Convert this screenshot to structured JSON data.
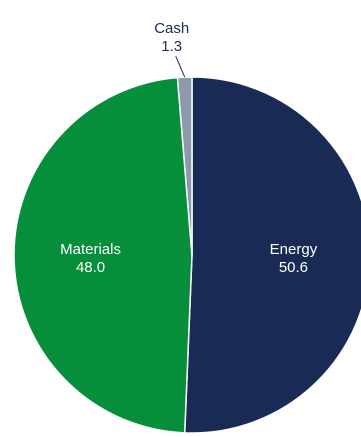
{
  "chart_data": {
    "type": "pie",
    "title": "",
    "slices": [
      {
        "label": "Energy",
        "value": 50.6,
        "color": "#192a54",
        "label_position": "inside"
      },
      {
        "label": "Materials",
        "value": 48.0,
        "color": "#078e3a",
        "label_position": "inside"
      },
      {
        "label": "Cash",
        "value": 1.3,
        "color": "#8b99a9",
        "label_position": "outside"
      }
    ],
    "start_angle": "12 o'clock, clockwise",
    "legend": "none"
  }
}
